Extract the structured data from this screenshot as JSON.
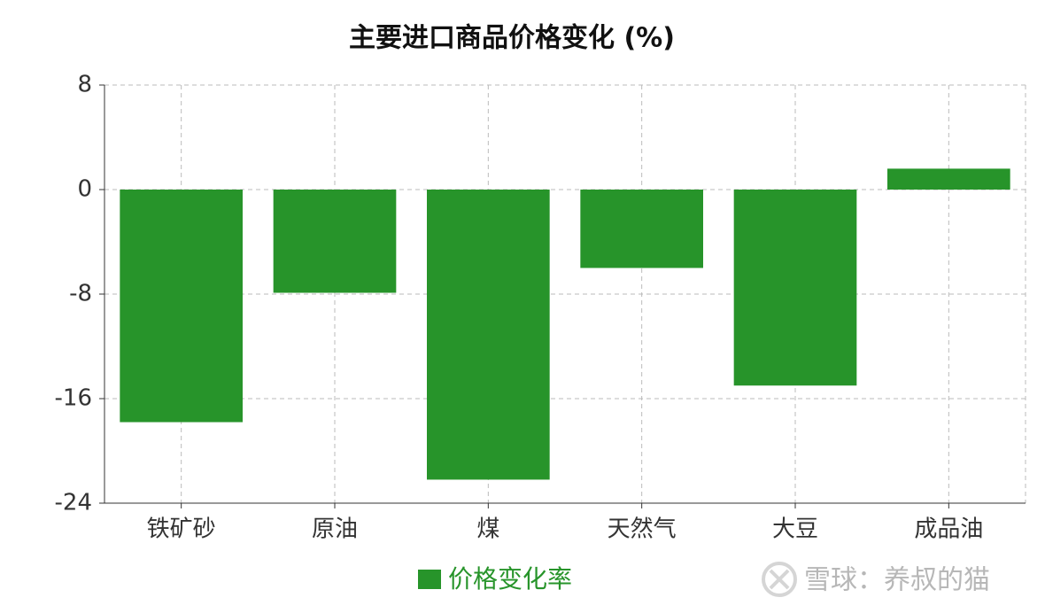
{
  "chart_data": {
    "type": "bar",
    "title": "主要进口商品价格变化 (%)",
    "categories": [
      "铁矿砂",
      "原油",
      "煤",
      "天然气",
      "大豆",
      "成品油"
    ],
    "series": [
      {
        "name": "价格变化率",
        "color": "#27942a",
        "values": [
          -17.8,
          -7.9,
          -22.2,
          -6.0,
          -15.0,
          1.6
        ]
      }
    ],
    "ylim": [
      -24,
      8
    ],
    "yticks": [
      -24,
      -16,
      -8,
      0,
      8
    ],
    "grid": true,
    "watermark": "雪球：养叔的猫"
  }
}
